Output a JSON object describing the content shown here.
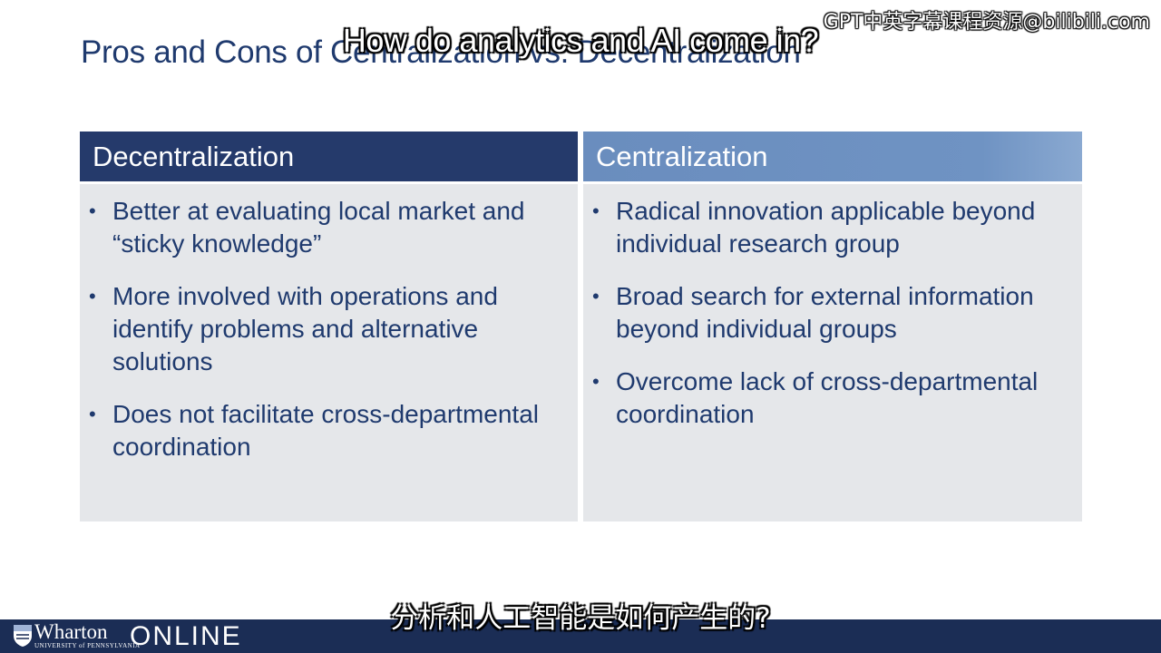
{
  "slide": {
    "title": "Pros and Cons of Centralization vs. Decentralization"
  },
  "overlay": {
    "watermark": "GPT中英字幕课程资源@bilibili.com",
    "subtitle_en": "How do analytics and AI come in?",
    "subtitle_zh": "分析和人工智能是如何产生的?"
  },
  "columns": [
    {
      "header": "Decentralization",
      "bullets": [
        "Better at evaluating local market and “sticky knowledge”",
        "More involved with operations and identify problems and alternative solutions",
        "Does not facilitate cross-departmental coordination"
      ]
    },
    {
      "header": "Centralization",
      "bullets": [
        "Radical innovation applicable beyond individual research group",
        "Broad search for external information beyond individual groups",
        "Overcome lack of cross-departmental coordination"
      ]
    }
  ],
  "footer": {
    "brand": "Wharton",
    "university": "UNIVERSITY of PENNSYLVANIA",
    "online": "ONLINE"
  },
  "bullet_symbol": "•",
  "colors": {
    "title": "#1f3a6e",
    "decentralization_header": "#253a6b",
    "centralization_header": "#6f93c3",
    "panel_body": "#e5e7ea",
    "footer": "#1b2d55"
  }
}
